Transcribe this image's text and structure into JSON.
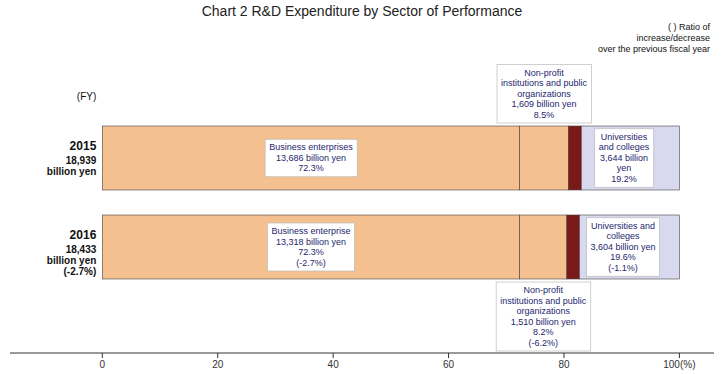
{
  "chart_data": {
    "type": "bar",
    "orientation": "horizontal",
    "stacked": true,
    "title": "Chart 2   R&D Expenditure by Sector of Performance",
    "categories": [
      "2015",
      "2016"
    ],
    "series": [
      {
        "color": "#F5C090",
        "values": [
          72.3,
          72.3
        ]
      },
      {
        "color": "#F5C090",
        "values": [
          8.5,
          8.2
        ]
      },
      {
        "color": "#7B1818",
        "values": [
          2.2,
          2.2
        ]
      },
      {
        "color": "#D8D8EE",
        "values": [
          17.0,
          17.3
        ]
      }
    ],
    "annotations": [
      "(FY)",
      "( )  Ratio of\nincrease/decrease\nover the previous fiscal year",
      "18,939\nbillion yen",
      "18,433\nbillion yen\n(-2.7%)",
      "Business enterprises\n13,686 billion yen\n72.3%",
      "Non-profit\ninstitutions and public\norganizations\n1,609 billion yen\n8.5%",
      "Universities\nand colleges\n3,644 billion\nyen\n19.2%",
      "Business enterprise\n13,318 billion yen\n72.3%\n(-2.7%)",
      "Non-profit\ninstitutions and public\norganizations\n1,510 billion yen\n8.2%\n(-6.2%)",
      "Universities and\ncolleges\n3,604 billion yen\n19.6%\n(-1.1%)"
    ],
    "xlim": [
      -16,
      106
    ],
    "xticks": [
      0,
      20,
      40,
      60,
      80,
      {
        "value": 100,
        "label": "100(%)"
      }
    ],
    "grid": false
  }
}
